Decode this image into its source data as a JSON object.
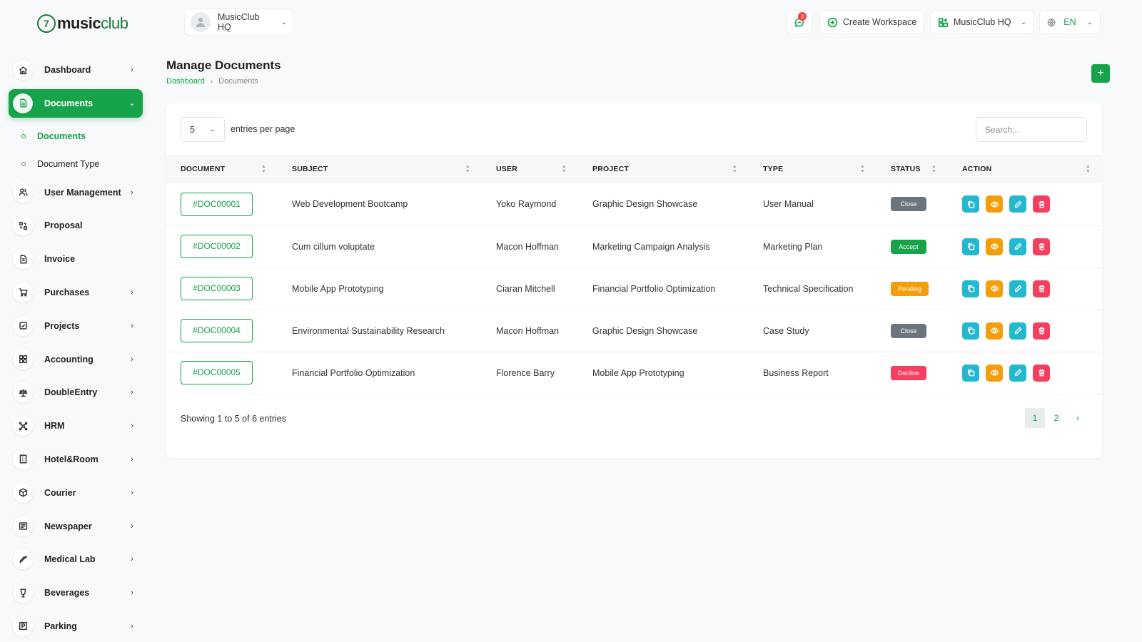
{
  "brand": {
    "logo_mark": "7",
    "name_part1": "music",
    "name_part2": "club"
  },
  "sidebar": {
    "items": [
      {
        "label": "Dashboard",
        "icon": "home-icon",
        "chevron": "›"
      },
      {
        "label": "Documents",
        "icon": "file-icon",
        "chevron": "⌄",
        "active": true
      },
      {
        "label": "User Management",
        "icon": "users-icon",
        "chevron": "›"
      },
      {
        "label": "Proposal",
        "icon": "proposal-icon",
        "chevron": ""
      },
      {
        "label": "Invoice",
        "icon": "invoice-icon",
        "chevron": ""
      },
      {
        "label": "Purchases",
        "icon": "cart-icon",
        "chevron": "›"
      },
      {
        "label": "Projects",
        "icon": "checkbox-icon",
        "chevron": "›"
      },
      {
        "label": "Accounting",
        "icon": "grid-icon",
        "chevron": "›"
      },
      {
        "label": "DoubleEntry",
        "icon": "scale-icon",
        "chevron": "›"
      },
      {
        "label": "HRM",
        "icon": "network-icon",
        "chevron": "›"
      },
      {
        "label": "Hotel&Room",
        "icon": "building-icon",
        "chevron": "›"
      },
      {
        "label": "Courier",
        "icon": "package-icon",
        "chevron": "›"
      },
      {
        "label": "Newspaper",
        "icon": "newspaper-icon",
        "chevron": "›"
      },
      {
        "label": "Medical Lab",
        "icon": "syringe-icon",
        "chevron": "›"
      },
      {
        "label": "Beverages",
        "icon": "glass-icon",
        "chevron": "›"
      },
      {
        "label": "Parking",
        "icon": "parking-icon",
        "chevron": "›"
      }
    ],
    "sub_items": [
      {
        "label": "Documents",
        "active": true
      },
      {
        "label": "Document Type",
        "active": false
      }
    ]
  },
  "header": {
    "workspace_select": "MusicClub HQ",
    "chat_count": "0",
    "create_workspace": "Create Workspace",
    "workspace_menu": "MusicClub HQ",
    "language": "EN"
  },
  "page": {
    "title": "Manage Documents",
    "breadcrumb_home": "Dashboard",
    "breadcrumb_sep": "›",
    "breadcrumb_current": "Documents",
    "add_label": "+"
  },
  "table_controls": {
    "per_page_value": "5",
    "per_page_label": "entries per page",
    "search_placeholder": "Search...",
    "showing": "Showing 1 to 5 of 6 entries",
    "pages": [
      "1",
      "2"
    ],
    "next": "›"
  },
  "columns": [
    "DOCUMENT",
    "SUBJECT",
    "USER",
    "PROJECT",
    "TYPE",
    "STATUS",
    "ACTION"
  ],
  "rows": [
    {
      "doc": "#DOC00001",
      "subject": "Web Development Bootcamp",
      "user": "Yoko Raymond",
      "project": "Graphic Design Showcase",
      "type": "User Manual",
      "status": "Close",
      "status_color": "#6c757d"
    },
    {
      "doc": "#DOC00002",
      "subject": "Cum cillum voluptate",
      "user": "Macon Hoffman",
      "project": "Marketing Campaign Analysis",
      "type": "Marketing Plan",
      "status": "Accept",
      "status_color": "#16a34a"
    },
    {
      "doc": "#DOC00003",
      "subject": "Mobile App Prototyping",
      "user": "Ciaran Mitchell",
      "project": "Financial Portfolio Optimization",
      "type": "Technical Specification",
      "status": "Pending",
      "status_color": "#f59e0b"
    },
    {
      "doc": "#DOC00004",
      "subject": "Environmental Sustainability Research",
      "user": "Macon Hoffman",
      "project": "Graphic Design Showcase",
      "type": "Case Study",
      "status": "Close",
      "status_color": "#6c757d"
    },
    {
      "doc": "#DOC00005",
      "subject": "Financial Portfolio Optimization",
      "user": "Florence Barry",
      "project": "Mobile App Prototyping",
      "type": "Business Report",
      "status": "Decline",
      "status_color": "#f43f5e"
    }
  ],
  "action_colors": {
    "copy": "#22b8cf",
    "view": "#f59e0b",
    "edit": "#22b8cf",
    "delete": "#f43f5e"
  }
}
